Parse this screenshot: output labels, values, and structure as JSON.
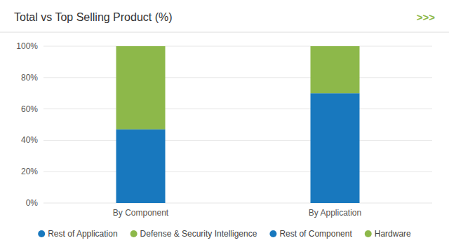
{
  "chart_data": {
    "type": "bar",
    "stacked": true,
    "title": "Total vs Top Selling Product (%)",
    "annotations": [
      {
        "text": ">>>",
        "color": "#8db84a"
      }
    ],
    "categories": [
      "By Component",
      "By Application"
    ],
    "series": [
      {
        "name": "Rest of Application",
        "color": "#1878be",
        "values": [
          null,
          0.7
        ]
      },
      {
        "name": "Defense & Security Intelligence",
        "color": "#8db84a",
        "values": [
          null,
          0.3
        ]
      },
      {
        "name": "Rest of Component",
        "color": "#1878be",
        "values": [
          0.47,
          null
        ]
      },
      {
        "name": "Hardware",
        "color": "#8db84a",
        "values": [
          0.53,
          null
        ]
      }
    ],
    "ylim": [
      0,
      1.0
    ],
    "yticks": [
      {
        "value": 0.0,
        "label": "0%"
      },
      {
        "value": 0.2,
        "label": "20%"
      },
      {
        "value": 0.4,
        "label": "40%"
      },
      {
        "value": 0.6,
        "label": "60%"
      },
      {
        "value": 0.8,
        "label": "80%"
      },
      {
        "value": 1.0,
        "label": "100%"
      }
    ],
    "grid": true,
    "legend": "bottom"
  }
}
